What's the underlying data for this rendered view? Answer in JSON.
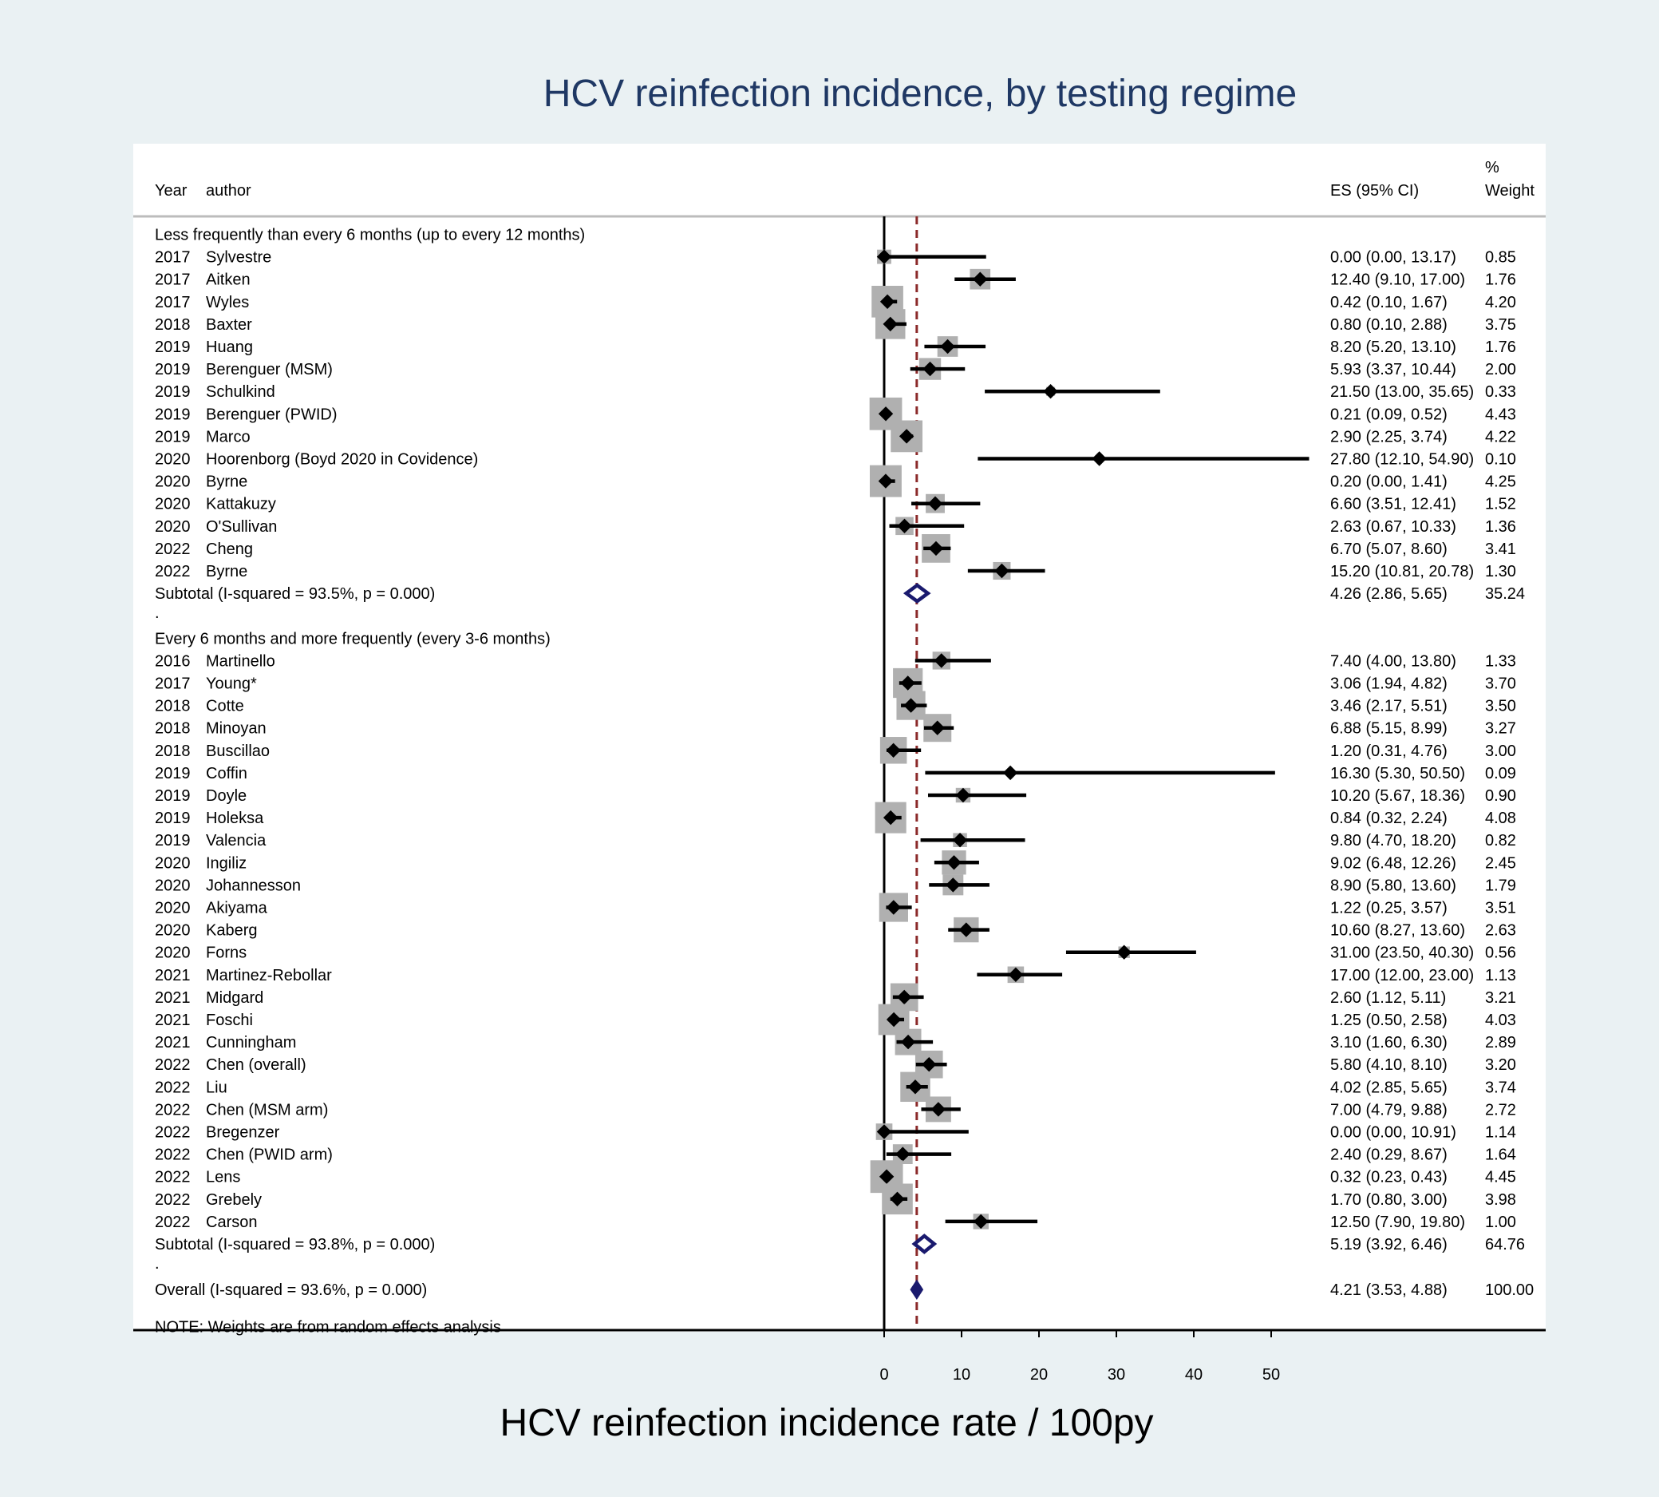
{
  "chart_data": {
    "type": "forest",
    "title": "HCV reinfection incidence, by testing regime",
    "xlabel": "HCV reinfection incidence rate / 100py",
    "xlim": [
      0,
      50
    ],
    "xticks": [
      0,
      10,
      20,
      30,
      40,
      50
    ],
    "headers": {
      "year": "Year",
      "author": "author",
      "es": "ES (95% CI)",
      "weight_top": "%",
      "weight": "Weight"
    },
    "reference_line": 4.21,
    "groups": [
      {
        "label": "Less frequently than every 6 months (up to every 12 months)",
        "studies": [
          {
            "year": "2017",
            "author": "Sylvestre",
            "es": 0.0,
            "lo": 0.0,
            "hi": 13.17,
            "es_text": "0.00 (0.00, 13.17)",
            "weight": "0.85"
          },
          {
            "year": "2017",
            "author": "Aitken",
            "es": 12.4,
            "lo": 9.1,
            "hi": 17.0,
            "es_text": "12.40 (9.10, 17.00)",
            "weight": "1.76"
          },
          {
            "year": "2017",
            "author": "Wyles",
            "es": 0.42,
            "lo": 0.1,
            "hi": 1.67,
            "es_text": "0.42 (0.10, 1.67)",
            "weight": "4.20"
          },
          {
            "year": "2018",
            "author": "Baxter",
            "es": 0.8,
            "lo": 0.1,
            "hi": 2.88,
            "es_text": "0.80 (0.10, 2.88)",
            "weight": "3.75"
          },
          {
            "year": "2019",
            "author": "Huang",
            "es": 8.2,
            "lo": 5.2,
            "hi": 13.1,
            "es_text": "8.20 (5.20, 13.10)",
            "weight": "1.76"
          },
          {
            "year": "2019",
            "author": "Berenguer (MSM)",
            "es": 5.93,
            "lo": 3.37,
            "hi": 10.44,
            "es_text": "5.93 (3.37, 10.44)",
            "weight": "2.00"
          },
          {
            "year": "2019",
            "author": "Schulkind",
            "es": 21.5,
            "lo": 13.0,
            "hi": 35.65,
            "es_text": "21.50 (13.00, 35.65)",
            "weight": "0.33"
          },
          {
            "year": "2019",
            "author": "Berenguer (PWID)",
            "es": 0.21,
            "lo": 0.09,
            "hi": 0.52,
            "es_text": "0.21 (0.09, 0.52)",
            "weight": "4.43"
          },
          {
            "year": "2019",
            "author": "Marco",
            "es": 2.9,
            "lo": 2.25,
            "hi": 3.74,
            "es_text": "2.90 (2.25, 3.74)",
            "weight": "4.22"
          },
          {
            "year": "2020",
            "author": "Hoorenborg (Boyd 2020 in Covidence)",
            "es": 27.8,
            "lo": 12.1,
            "hi": 54.9,
            "es_text": "27.80 (12.10, 54.90)",
            "weight": "0.10"
          },
          {
            "year": "2020",
            "author": "Byrne",
            "es": 0.2,
            "lo": 0.0,
            "hi": 1.41,
            "es_text": "0.20 (0.00, 1.41)",
            "weight": "4.25"
          },
          {
            "year": "2020",
            "author": "Kattakuzy",
            "es": 6.6,
            "lo": 3.51,
            "hi": 12.41,
            "es_text": "6.60 (3.51, 12.41)",
            "weight": "1.52"
          },
          {
            "year": "2020",
            "author": "O'Sullivan",
            "es": 2.63,
            "lo": 0.67,
            "hi": 10.33,
            "es_text": "2.63 (0.67, 10.33)",
            "weight": "1.36"
          },
          {
            "year": "2022",
            "author": "Cheng",
            "es": 6.7,
            "lo": 5.07,
            "hi": 8.6,
            "es_text": "6.70 (5.07, 8.60)",
            "weight": "3.41"
          },
          {
            "year": "2022",
            "author": "Byrne",
            "es": 15.2,
            "lo": 10.81,
            "hi": 20.78,
            "es_text": "15.20 (10.81, 20.78)",
            "weight": "1.30"
          }
        ],
        "subtotal": {
          "label": "Subtotal  (I-squared = 93.5%, p = 0.000)",
          "es": 4.26,
          "lo": 2.86,
          "hi": 5.65,
          "es_text": "4.26 (2.86, 5.65)",
          "weight": "35.24"
        }
      },
      {
        "label": "Every 6 months and more frequently (every 3-6 months)",
        "studies": [
          {
            "year": "2016",
            "author": "Martinello",
            "es": 7.4,
            "lo": 4.0,
            "hi": 13.8,
            "es_text": "7.40 (4.00, 13.80)",
            "weight": "1.33"
          },
          {
            "year": "2017",
            "author": "Young*",
            "es": 3.06,
            "lo": 1.94,
            "hi": 4.82,
            "es_text": "3.06 (1.94, 4.82)",
            "weight": "3.70"
          },
          {
            "year": "2018",
            "author": "Cotte",
            "es": 3.46,
            "lo": 2.17,
            "hi": 5.51,
            "es_text": "3.46 (2.17, 5.51)",
            "weight": "3.50"
          },
          {
            "year": "2018",
            "author": "Minoyan",
            "es": 6.88,
            "lo": 5.15,
            "hi": 8.99,
            "es_text": "6.88 (5.15, 8.99)",
            "weight": "3.27"
          },
          {
            "year": "2018",
            "author": "Buscillao",
            "es": 1.2,
            "lo": 0.31,
            "hi": 4.76,
            "es_text": "1.20 (0.31, 4.76)",
            "weight": "3.00"
          },
          {
            "year": "2019",
            "author": "Coffin",
            "es": 16.3,
            "lo": 5.3,
            "hi": 50.5,
            "es_text": "16.30 (5.30, 50.50)",
            "weight": "0.09"
          },
          {
            "year": "2019",
            "author": "Doyle",
            "es": 10.2,
            "lo": 5.67,
            "hi": 18.36,
            "es_text": "10.20 (5.67, 18.36)",
            "weight": "0.90"
          },
          {
            "year": "2019",
            "author": "Holeksa",
            "es": 0.84,
            "lo": 0.32,
            "hi": 2.24,
            "es_text": "0.84 (0.32, 2.24)",
            "weight": "4.08"
          },
          {
            "year": "2019",
            "author": "Valencia",
            "es": 9.8,
            "lo": 4.7,
            "hi": 18.2,
            "es_text": "9.80 (4.70, 18.20)",
            "weight": "0.82"
          },
          {
            "year": "2020",
            "author": "Ingiliz",
            "es": 9.02,
            "lo": 6.48,
            "hi": 12.26,
            "es_text": "9.02 (6.48, 12.26)",
            "weight": "2.45"
          },
          {
            "year": "2020",
            "author": "Johannesson",
            "es": 8.9,
            "lo": 5.8,
            "hi": 13.6,
            "es_text": "8.90 (5.80, 13.60)",
            "weight": "1.79"
          },
          {
            "year": "2020",
            "author": "Akiyama",
            "es": 1.22,
            "lo": 0.25,
            "hi": 3.57,
            "es_text": "1.22 (0.25, 3.57)",
            "weight": "3.51"
          },
          {
            "year": "2020",
            "author": "Kaberg",
            "es": 10.6,
            "lo": 8.27,
            "hi": 13.6,
            "es_text": "10.60 (8.27, 13.60)",
            "weight": "2.63"
          },
          {
            "year": "2020",
            "author": "Forns",
            "es": 31.0,
            "lo": 23.5,
            "hi": 40.3,
            "es_text": "31.00 (23.50, 40.30)",
            "weight": "0.56"
          },
          {
            "year": "2021",
            "author": "Martinez-Rebollar",
            "es": 17.0,
            "lo": 12.0,
            "hi": 23.0,
            "es_text": "17.00 (12.00, 23.00)",
            "weight": "1.13"
          },
          {
            "year": "2021",
            "author": "Midgard",
            "es": 2.6,
            "lo": 1.12,
            "hi": 5.11,
            "es_text": "2.60 (1.12, 5.11)",
            "weight": "3.21"
          },
          {
            "year": "2021",
            "author": "Foschi",
            "es": 1.25,
            "lo": 0.5,
            "hi": 2.58,
            "es_text": "1.25 (0.50, 2.58)",
            "weight": "4.03"
          },
          {
            "year": "2021",
            "author": "Cunningham",
            "es": 3.1,
            "lo": 1.6,
            "hi": 6.3,
            "es_text": "3.10 (1.60, 6.30)",
            "weight": "2.89"
          },
          {
            "year": "2022",
            "author": "Chen (overall)",
            "es": 5.8,
            "lo": 4.1,
            "hi": 8.1,
            "es_text": "5.80 (4.10, 8.10)",
            "weight": "3.20"
          },
          {
            "year": "2022",
            "author": "Liu",
            "es": 4.02,
            "lo": 2.85,
            "hi": 5.65,
            "es_text": "4.02 (2.85, 5.65)",
            "weight": "3.74"
          },
          {
            "year": "2022",
            "author": "Chen (MSM arm)",
            "es": 7.0,
            "lo": 4.79,
            "hi": 9.88,
            "es_text": "7.00 (4.79, 9.88)",
            "weight": "2.72"
          },
          {
            "year": "2022",
            "author": "Bregenzer",
            "es": 0.0,
            "lo": 0.0,
            "hi": 10.91,
            "es_text": "0.00 (0.00, 10.91)",
            "weight": "1.14"
          },
          {
            "year": "2022",
            "author": "Chen (PWID arm)",
            "es": 2.4,
            "lo": 0.29,
            "hi": 8.67,
            "es_text": "2.40 (0.29, 8.67)",
            "weight": "1.64"
          },
          {
            "year": "2022",
            "author": "Lens",
            "es": 0.32,
            "lo": 0.23,
            "hi": 0.43,
            "es_text": "0.32 (0.23, 0.43)",
            "weight": "4.45"
          },
          {
            "year": "2022",
            "author": "Grebely",
            "es": 1.7,
            "lo": 0.8,
            "hi": 3.0,
            "es_text": "1.70 (0.80, 3.00)",
            "weight": "3.98"
          },
          {
            "year": "2022",
            "author": "Carson",
            "es": 12.5,
            "lo": 7.9,
            "hi": 19.8,
            "es_text": "12.50 (7.90, 19.80)",
            "weight": "1.00"
          }
        ],
        "subtotal": {
          "label": "Subtotal  (I-squared = 93.8%, p = 0.000)",
          "es": 5.19,
          "lo": 3.92,
          "hi": 6.46,
          "es_text": "5.19 (3.92, 6.46)",
          "weight": "64.76"
        }
      }
    ],
    "separator": ".",
    "overall": {
      "label": "Overall  (I-squared = 93.6%, p = 0.000)",
      "es": 4.21,
      "lo": 3.53,
      "hi": 4.88,
      "es_text": "4.21 (3.53, 4.88)",
      "weight": "100.00"
    },
    "note": "NOTE: Weights are from random effects analysis",
    "colors": {
      "background": "#eaf1f3",
      "panel": "#ffffff",
      "title": "#1f3864",
      "reference_line": "#8b2a2a",
      "weight_box": "#b0b0b0",
      "summary_diamond": "#1a1a6e",
      "marker": "#000000"
    }
  }
}
